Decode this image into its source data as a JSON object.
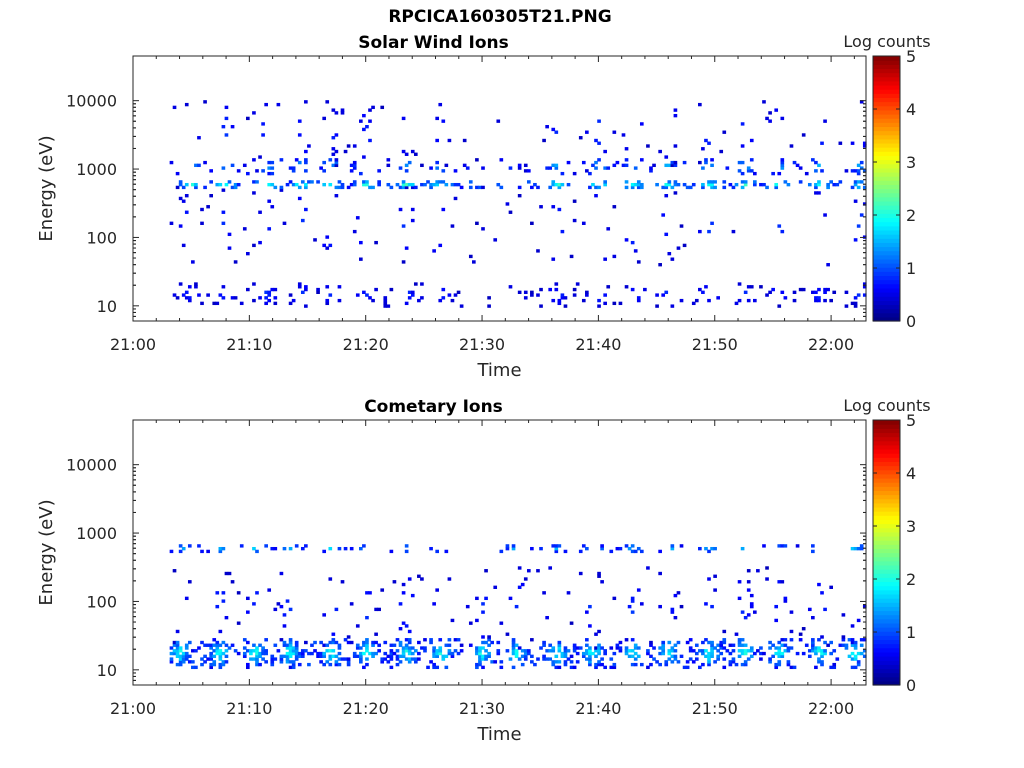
{
  "figure": {
    "title": "RPCICA160305T21.PNG"
  },
  "chart_data": [
    {
      "type": "heatmap",
      "title": "Solar Wind Ions",
      "xlabel": "Time",
      "ylabel": "Energy (eV)",
      "x_ticks": [
        "21:00",
        "21:10",
        "21:20",
        "21:30",
        "21:40",
        "21:50",
        "22:00"
      ],
      "y_scale": "log",
      "y_ticks": [
        10,
        100,
        1000,
        10000
      ],
      "y_tick_labels": [
        "10",
        "100",
        "1000",
        "10000"
      ],
      "xlim": [
        "21:00",
        "22:03"
      ],
      "ylim": [
        6,
        45000
      ],
      "colorbar": {
        "label": "Log counts",
        "ticks": [
          0,
          1,
          2,
          3,
          4,
          5
        ],
        "range": [
          0,
          5
        ],
        "colormap": "jet"
      },
      "bands": [
        {
          "energy": 600,
          "spread": 0.07,
          "density": 0.6,
          "level_min": 0.6,
          "level_max": 2.4
        },
        {
          "energy": 1100,
          "spread": 0.12,
          "density": 0.25,
          "level_min": 0.4,
          "level_max": 1.8
        },
        {
          "energy": 15,
          "spread": 0.18,
          "density": 0.22,
          "level_min": 0.3,
          "level_max": 1.0
        },
        {
          "energy": 150,
          "spread": 0.6,
          "density": 0.05,
          "level_min": 0.3,
          "level_max": 1.0
        },
        {
          "energy": 3500,
          "spread": 0.5,
          "density": 0.05,
          "level_min": 0.3,
          "level_max": 1.0
        }
      ],
      "hot_spots_minutes": [
        5,
        8,
        11.5,
        14.5,
        17,
        20,
        23.5,
        26.5,
        36.5,
        40,
        43,
        46,
        49.5,
        52.5,
        55.5,
        59,
        62.5
      ]
    },
    {
      "type": "heatmap",
      "title": "Cometary Ions",
      "xlabel": "Time",
      "ylabel": "Energy (eV)",
      "x_ticks": [
        "21:00",
        "21:10",
        "21:20",
        "21:30",
        "21:40",
        "21:50",
        "22:00"
      ],
      "y_scale": "log",
      "y_ticks": [
        10,
        100,
        1000,
        10000
      ],
      "y_tick_labels": [
        "10",
        "100",
        "1000",
        "10000"
      ],
      "xlim": [
        "21:00",
        "22:03"
      ],
      "ylim": [
        6,
        45000
      ],
      "colorbar": {
        "label": "Log counts",
        "ticks": [
          0,
          1,
          2,
          3,
          4,
          5
        ],
        "range": [
          0,
          5
        ],
        "colormap": "jet"
      },
      "bands": [
        {
          "energy": 18,
          "spread": 0.22,
          "density": 0.7,
          "level_min": 0.5,
          "level_max": 2.3
        },
        {
          "energy": 600,
          "spread": 0.06,
          "density": 0.35,
          "level_min": 0.5,
          "level_max": 1.8
        },
        {
          "energy": 80,
          "spread": 0.6,
          "density": 0.06,
          "level_min": 0.3,
          "level_max": 1.0
        }
      ],
      "hot_spots_minutes": [
        4,
        7.5,
        10.5,
        13.5,
        17,
        20,
        23.5,
        26.5,
        30,
        33,
        36.5,
        39.5,
        43,
        46,
        49.5,
        52.5,
        55.5,
        59,
        62
      ]
    }
  ]
}
